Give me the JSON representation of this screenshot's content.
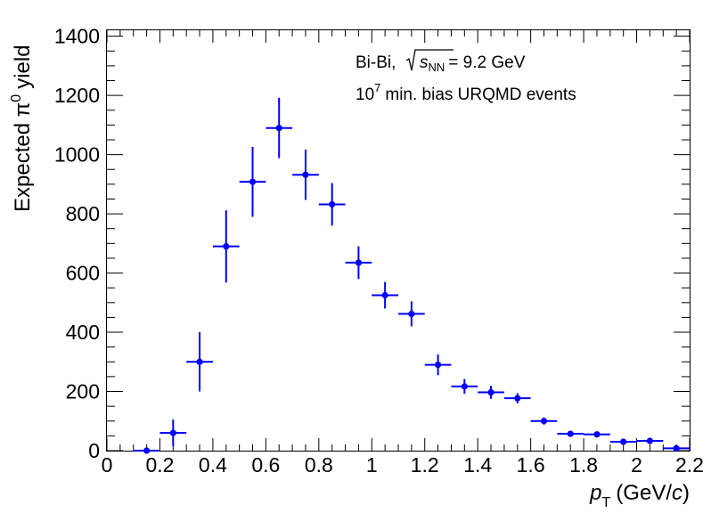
{
  "chart_data": {
    "type": "scatter",
    "ylabel": {
      "main": "Expected π",
      "superscript": "0",
      "suffix": "yield"
    },
    "xlabel": {
      "main": "p",
      "subscript": "T",
      "suffix_open": "(GeV/",
      "suffix_var": "c",
      "suffix_close": ")"
    },
    "xlim": [
      0,
      2.2
    ],
    "ylim": [
      0,
      1420
    ],
    "xticks": [
      "0",
      "0.2",
      "0.4",
      "0.6",
      "0.8",
      "1",
      "1.2",
      "1.4",
      "1.6",
      "1.8",
      "2",
      "2.2"
    ],
    "yticks": [
      "0",
      "200",
      "400",
      "600",
      "800",
      "1000",
      "1200",
      "1400"
    ],
    "grid": false,
    "legend": "none",
    "annotations": {
      "line1_prefix": "Bi-Bi,",
      "line1_sqrt_var": "s",
      "line1_sqrt_sub": "NN",
      "line1_suffix": "= 9.2 GeV",
      "line2_base": "10",
      "line2_sup": "7",
      "line2_suffix": "min. bias URQMD events"
    },
    "marker_color": "#0000ff",
    "series": [
      {
        "x": [
          0.15,
          0.25,
          0.35,
          0.45,
          0.55,
          0.65,
          0.75,
          0.85,
          0.95,
          1.05,
          1.15,
          1.25,
          1.35,
          1.45,
          1.55,
          1.65,
          1.75,
          1.85,
          1.95,
          2.05,
          2.15
        ],
        "y": [
          0,
          60,
          300,
          690,
          908,
          1090,
          932,
          832,
          635,
          525,
          462,
          290,
          217,
          197,
          177,
          100,
          57,
          55,
          30,
          33,
          8
        ],
        "xerr": [
          0.05,
          0.05,
          0.05,
          0.05,
          0.05,
          0.05,
          0.05,
          0.05,
          0.05,
          0.05,
          0.05,
          0.05,
          0.05,
          0.05,
          0.05,
          0.05,
          0.05,
          0.05,
          0.05,
          0.05,
          0.05
        ],
        "yerr": [
          0,
          45,
          100,
          122,
          118,
          102,
          85,
          72,
          55,
          45,
          42,
          35,
          25,
          22,
          17,
          12,
          9,
          8,
          7,
          7,
          3
        ]
      }
    ]
  }
}
